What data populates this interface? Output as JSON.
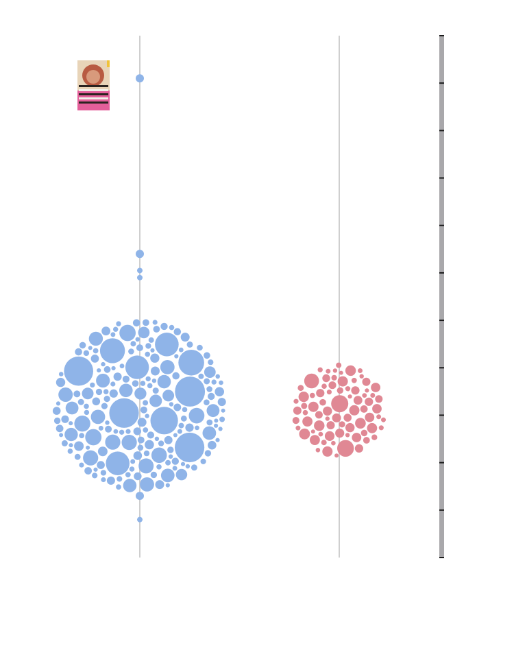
{
  "chart_data": {
    "type": "scatter",
    "title": "",
    "xlabel": "",
    "ylabel": "",
    "ylim": [
      0,
      11
    ],
    "y_ticks": [
      0,
      1,
      2,
      3,
      4,
      5,
      6,
      7,
      8,
      9,
      10,
      11
    ],
    "grid": false,
    "legend": "none",
    "series": [
      {
        "color": "#8fb4e8",
        "outliers": [
          {
            "y": 10.1,
            "size": 2
          },
          {
            "y": 6.4,
            "size": 2
          },
          {
            "y": 6.05,
            "size": 1
          },
          {
            "y": 5.9,
            "size": 1
          },
          {
            "y": 1.3,
            "size": 2
          },
          {
            "y": 0.8,
            "size": 1
          }
        ],
        "cluster": {
          "center_y": 3.2,
          "half_range_y": 2.0,
          "count": 420
        }
      },
      {
        "color": "#e08894",
        "outliers": [],
        "cluster": {
          "center_y": 3.1,
          "half_range_y": 1.1,
          "count": 150
        }
      }
    ],
    "annotation_image": "character-portrait"
  }
}
